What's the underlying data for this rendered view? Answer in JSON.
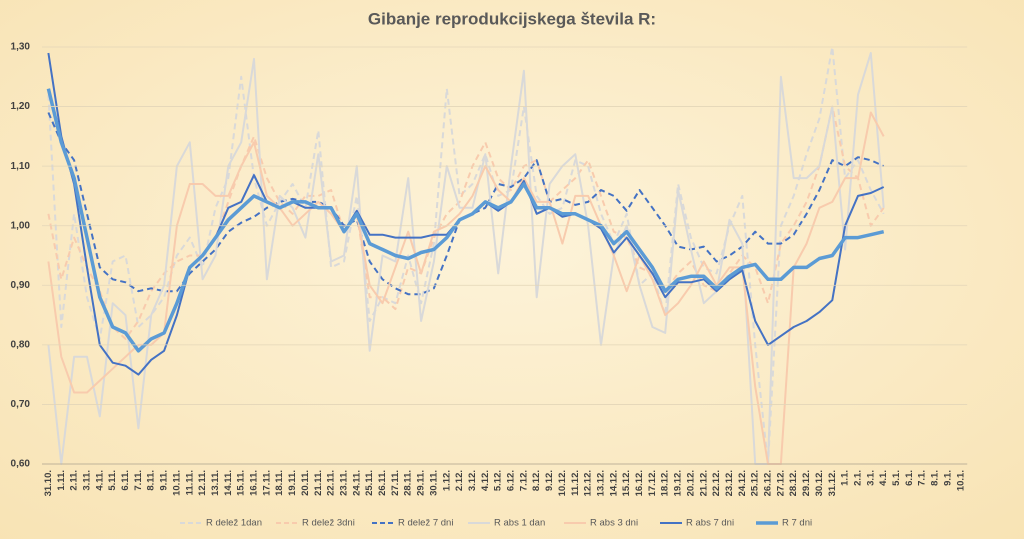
{
  "chart_data": {
    "type": "line",
    "title": "Gibanje reprodukcijskega števila R:",
    "categories": [
      "31.10.",
      "1.11.",
      "2.11.",
      "3.11.",
      "4.11.",
      "5.11.",
      "6.11.",
      "7.11.",
      "8.11.",
      "9.11.",
      "10.11.",
      "11.11.",
      "12.11.",
      "13.11.",
      "14.11.",
      "15.11.",
      "16.11.",
      "17.11.",
      "18.11.",
      "19.11.",
      "20.11.",
      "21.11.",
      "22.11.",
      "23.11.",
      "24.11.",
      "25.11.",
      "26.11.",
      "27.11.",
      "28.11.",
      "29.11.",
      "30.11.",
      "1.12.",
      "2.12.",
      "3.12.",
      "4.12.",
      "5.12.",
      "6.12.",
      "7.12.",
      "8.12.",
      "9.12.",
      "10.12.",
      "11.12.",
      "12.12.",
      "13.12.",
      "14.12.",
      "15.12.",
      "16.12.",
      "17.12.",
      "18.12.",
      "19.12.",
      "20.12.",
      "21.12.",
      "22.12.",
      "23.12.",
      "24.12.",
      "25.12.",
      "26.12.",
      "27.12.",
      "28.12.",
      "29.12.",
      "30.12.",
      "31.12.",
      "1.1.",
      "2.1.",
      "3.1.",
      "4.1.",
      "5.1.",
      "6.1.",
      "7.1.",
      "8.1.",
      "9.1.",
      "10.1."
    ],
    "series": [
      {
        "name": "R delež 1dan",
        "color": "#d9d9d9",
        "dashed": true,
        "values": [
          1.22,
          0.83,
          1.02,
          0.88,
          0.81,
          0.94,
          0.95,
          0.83,
          0.85,
          0.88,
          0.95,
          0.98,
          0.93,
          1.03,
          1.08,
          1.25,
          1.08,
          1.0,
          1.04,
          1.07,
          1.03,
          1.16,
          0.93,
          0.94,
          1.05,
          0.84,
          0.88,
          0.87,
          0.95,
          0.87,
          0.97,
          1.23,
          1.05,
          1.07,
          1.12,
          1.05,
          1.06,
          1.2,
          1.05,
          1.02,
          1.03,
          1.11,
          1.1,
          1.02,
          0.97,
          1.02,
          0.9,
          0.92,
          0.85,
          1.07,
          0.98,
          0.93,
          0.92,
          1.0,
          1.05,
          0.8,
          0.6,
          1.0,
          1.05,
          1.12,
          1.18,
          1.3,
          1.08,
          1.11,
          1.06,
          1.02,
          null,
          null,
          null,
          null,
          null,
          null
        ]
      },
      {
        "name": "R delež 3dni",
        "color": "#f8cbad",
        "dashed": true,
        "values": [
          1.02,
          0.91,
          0.98,
          0.93,
          0.89,
          0.83,
          0.81,
          0.84,
          0.89,
          0.92,
          0.94,
          0.95,
          0.95,
          0.98,
          1.04,
          1.1,
          1.15,
          1.08,
          1.04,
          1.02,
          1.05,
          1.05,
          1.06,
          0.99,
          1.02,
          0.88,
          0.88,
          0.86,
          0.93,
          0.92,
          0.98,
          1.02,
          1.04,
          1.1,
          1.14,
          1.08,
          1.06,
          1.1,
          1.11,
          1.04,
          1.06,
          1.08,
          1.11,
          1.05,
          0.99,
          0.98,
          0.93,
          0.92,
          0.89,
          0.92,
          0.94,
          0.9,
          0.89,
          0.92,
          0.95,
          0.93,
          0.87,
          0.97,
          1.0,
          1.04,
          1.1,
          1.2,
          1.1,
          1.08,
          1.0,
          1.03,
          null,
          null,
          null,
          null,
          null,
          null
        ]
      },
      {
        "name": "R delež 7 dni",
        "color": "#4472c4",
        "dashed": true,
        "values": [
          1.19,
          1.14,
          1.11,
          1.02,
          0.93,
          0.91,
          0.905,
          0.89,
          0.895,
          0.89,
          0.89,
          0.92,
          0.94,
          0.96,
          0.99,
          1.005,
          1.015,
          1.03,
          1.04,
          1.045,
          1.04,
          1.04,
          1.03,
          1.0,
          1.01,
          0.94,
          0.91,
          0.895,
          0.885,
          0.885,
          0.895,
          0.95,
          1.01,
          1.02,
          1.03,
          1.07,
          1.065,
          1.08,
          1.11,
          1.04,
          1.045,
          1.035,
          1.04,
          1.06,
          1.05,
          1.025,
          1.06,
          1.03,
          1.0,
          0.965,
          0.96,
          0.965,
          0.94,
          0.95,
          0.965,
          0.99,
          0.97,
          0.97,
          0.985,
          1.02,
          1.06,
          1.11,
          1.1,
          1.115,
          1.11,
          1.1,
          null,
          null,
          null,
          null,
          null,
          null
        ]
      },
      {
        "name": "R abs 1 dan",
        "color": "#d9d9d9",
        "dashed": false,
        "values": [
          0.8,
          0.6,
          0.78,
          0.78,
          0.68,
          0.87,
          0.85,
          0.66,
          0.85,
          0.9,
          1.1,
          1.14,
          0.91,
          0.95,
          1.1,
          1.14,
          1.28,
          0.91,
          1.05,
          1.03,
          0.98,
          1.12,
          0.94,
          0.95,
          1.1,
          0.79,
          0.95,
          0.94,
          1.08,
          0.84,
          0.94,
          1.1,
          1.03,
          1.03,
          1.12,
          0.92,
          1.1,
          1.26,
          0.88,
          1.07,
          1.1,
          1.12,
          1.0,
          0.8,
          0.95,
          1.0,
          0.9,
          0.83,
          0.82,
          1.06,
          0.96,
          0.87,
          0.89,
          1.01,
          0.97,
          0.6,
          0.6,
          1.25,
          1.08,
          1.08,
          1.1,
          1.2,
          0.96,
          1.22,
          1.29,
          1.03,
          null,
          null,
          null,
          null,
          null,
          null
        ]
      },
      {
        "name": "R abs 3 dni",
        "color": "#f8cbad",
        "dashed": false,
        "values": [
          0.94,
          0.78,
          0.72,
          0.72,
          0.74,
          0.76,
          0.78,
          0.8,
          0.8,
          0.82,
          1.0,
          1.07,
          1.07,
          1.05,
          1.05,
          1.1,
          1.14,
          1.05,
          1.03,
          1.0,
          1.02,
          1.04,
          1.02,
          0.99,
          1.02,
          0.9,
          0.87,
          0.93,
          0.99,
          0.92,
          0.99,
          1.0,
          1.02,
          1.05,
          1.1,
          1.06,
          1.04,
          1.08,
          1.04,
          1.04,
          0.97,
          1.05,
          1.05,
          1.0,
          0.95,
          0.89,
          0.95,
          0.91,
          0.85,
          0.87,
          0.9,
          0.94,
          0.9,
          0.93,
          0.93,
          0.73,
          0.6,
          0.6,
          0.93,
          0.97,
          1.03,
          1.04,
          1.08,
          1.08,
          1.19,
          1.15,
          null,
          null,
          null,
          null,
          null,
          null
        ]
      },
      {
        "name": "R abs 7 dni",
        "color": "#4472c4",
        "dashed": false,
        "values": [
          1.29,
          1.15,
          1.07,
          0.93,
          0.8,
          0.77,
          0.765,
          0.75,
          0.775,
          0.79,
          0.85,
          0.93,
          0.95,
          0.98,
          1.03,
          1.04,
          1.085,
          1.04,
          1.03,
          1.04,
          1.03,
          1.03,
          1.03,
          0.99,
          1.025,
          0.985,
          0.985,
          0.98,
          0.98,
          0.98,
          0.985,
          0.985,
          1.01,
          1.02,
          1.04,
          1.025,
          1.04,
          1.075,
          1.02,
          1.03,
          1.015,
          1.02,
          1.01,
          0.995,
          0.955,
          0.98,
          0.95,
          0.92,
          0.88,
          0.905,
          0.905,
          0.91,
          0.89,
          0.91,
          0.925,
          0.84,
          0.8,
          0.815,
          0.83,
          0.84,
          0.855,
          0.875,
          1.0,
          1.05,
          1.055,
          1.065,
          null,
          null,
          null,
          null,
          null,
          null
        ]
      },
      {
        "name": "R 7 dni",
        "color": "#5b9bd5",
        "dashed": false,
        "values": [
          1.23,
          1.14,
          1.08,
          0.98,
          0.88,
          0.83,
          0.82,
          0.79,
          0.81,
          0.82,
          0.87,
          0.93,
          0.95,
          0.98,
          1.01,
          1.03,
          1.05,
          1.04,
          1.03,
          1.04,
          1.04,
          1.03,
          1.03,
          0.99,
          1.02,
          0.97,
          0.96,
          0.95,
          0.945,
          0.955,
          0.96,
          0.98,
          1.01,
          1.02,
          1.04,
          1.03,
          1.04,
          1.07,
          1.03,
          1.03,
          1.02,
          1.02,
          1.01,
          1.0,
          0.97,
          0.99,
          0.96,
          0.93,
          0.89,
          0.91,
          0.915,
          0.915,
          0.895,
          0.915,
          0.93,
          0.935,
          0.91,
          0.91,
          0.93,
          0.93,
          0.945,
          0.95,
          0.98,
          0.98,
          0.985,
          0.99,
          null,
          null,
          null,
          null,
          null,
          null
        ]
      }
    ],
    "ylim": [
      0.6,
      1.3
    ],
    "yticks": [
      {
        "value": 0.6,
        "label": "0,60"
      },
      {
        "value": 0.7,
        "label": "0,70"
      },
      {
        "value": 0.8,
        "label": "0,80"
      },
      {
        "value": 0.9,
        "label": "0,90"
      },
      {
        "value": 1.0,
        "label": "1,00"
      },
      {
        "value": 1.1,
        "label": "1,10"
      },
      {
        "value": 1.2,
        "label": "1,20"
      },
      {
        "value": 1.3,
        "label": "1,30"
      }
    ],
    "grid": true,
    "legend": "bottom"
  }
}
